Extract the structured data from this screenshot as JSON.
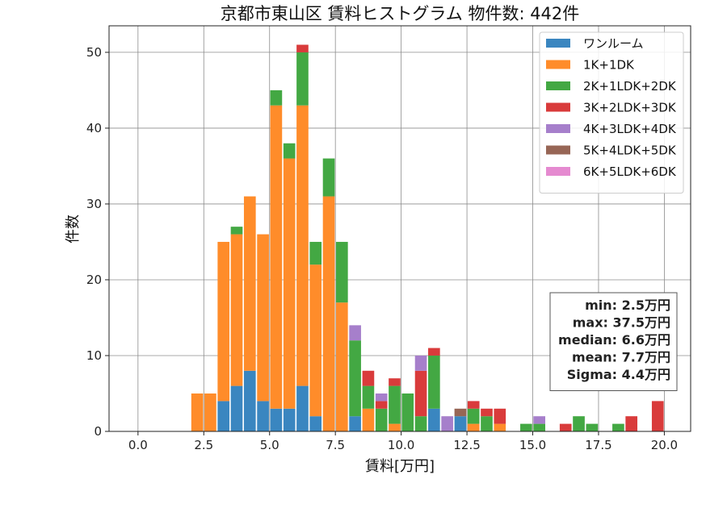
{
  "chart_data": {
    "type": "bar",
    "stacked": true,
    "title": "京都市東山区 賃料ヒストグラム  物件数: 442件",
    "xlabel": "賃料[万円]",
    "ylabel": "件数",
    "xlim": [
      -1.1,
      21.0
    ],
    "ylim": [
      0,
      53.5
    ],
    "xticks": [
      0,
      2.5,
      5,
      7.5,
      10,
      12.5,
      15,
      17.5,
      20
    ],
    "xtick_labels": [
      "0.0",
      "2.5",
      "5.0",
      "7.5",
      "10.0",
      "12.5",
      "15.0",
      "17.5",
      "20.0"
    ],
    "yticks": [
      0,
      10,
      20,
      30,
      40,
      50
    ],
    "ytick_labels": [
      "0",
      "10",
      "20",
      "30",
      "40",
      "50"
    ],
    "grid": true,
    "legend_position": "top-right",
    "bin_width": 0.5,
    "bins": [
      2.25,
      2.75,
      3.25,
      3.75,
      4.25,
      4.75,
      5.25,
      5.75,
      6.25,
      6.75,
      7.25,
      7.75,
      8.25,
      8.75,
      9.25,
      9.75,
      10.25,
      10.75,
      11.25,
      11.75,
      12.25,
      12.75,
      13.25,
      13.75,
      14.25,
      14.75,
      15.25,
      15.75,
      16.25,
      16.75,
      17.25,
      17.75,
      18.25,
      18.75,
      19.25,
      19.75
    ],
    "series": [
      {
        "name": "ワンルーム",
        "color": "#3a86c0",
        "values": [
          0,
          0,
          4,
          6,
          8,
          4,
          3,
          3,
          6,
          2,
          0,
          0,
          2,
          0,
          0,
          0,
          0,
          0,
          3,
          0,
          2,
          0,
          0,
          0,
          0,
          0,
          0,
          0,
          0,
          0,
          0,
          0,
          0,
          0,
          0,
          0
        ]
      },
      {
        "name": "1K+1DK",
        "color": "#ff8c2a",
        "values": [
          5,
          5,
          21,
          20,
          23,
          22,
          40,
          33,
          37,
          20,
          31,
          17,
          0,
          3,
          0,
          1,
          0,
          0,
          0,
          0,
          0,
          1,
          0,
          1,
          0,
          0,
          0,
          0,
          0,
          0,
          0,
          0,
          0,
          0,
          0,
          0
        ]
      },
      {
        "name": "2K+1LDK+2DK",
        "color": "#43a843",
        "values": [
          0,
          0,
          0,
          1,
          0,
          0,
          2,
          2,
          7,
          3,
          5,
          8,
          10,
          3,
          3,
          5,
          5,
          2,
          7,
          0,
          0,
          2,
          2,
          0,
          0,
          1,
          1,
          0,
          0,
          2,
          1,
          0,
          1,
          0,
          0,
          0
        ]
      },
      {
        "name": "3K+2LDK+3DK",
        "color": "#d93b3b",
        "values": [
          0,
          0,
          0,
          0,
          0,
          0,
          0,
          0,
          1,
          0,
          0,
          0,
          0,
          2,
          1,
          1,
          0,
          6,
          1,
          0,
          0,
          1,
          1,
          2,
          0,
          0,
          0,
          0,
          1,
          0,
          0,
          0,
          0,
          2,
          0,
          4
        ]
      },
      {
        "name": "4K+3LDK+4DK",
        "color": "#a67fcb",
        "values": [
          0,
          0,
          0,
          0,
          0,
          0,
          0,
          0,
          0,
          0,
          0,
          0,
          2,
          0,
          1,
          0,
          0,
          2,
          0,
          2,
          0,
          0,
          0,
          0,
          0,
          0,
          1,
          0,
          0,
          0,
          0,
          0,
          0,
          0,
          0,
          0
        ]
      },
      {
        "name": "5K+4LDK+5DK",
        "color": "#976656",
        "values": [
          0,
          0,
          0,
          0,
          0,
          0,
          0,
          0,
          0,
          0,
          0,
          0,
          0,
          0,
          0,
          0,
          0,
          0,
          0,
          0,
          1,
          0,
          0,
          0,
          0,
          0,
          0,
          0,
          0,
          0,
          0,
          0,
          0,
          0,
          0,
          0
        ]
      },
      {
        "name": "6K+5LDK+6DK",
        "color": "#e58ad0",
        "values": [
          0,
          0,
          0,
          0,
          0,
          0,
          0,
          0,
          0,
          0,
          0,
          0,
          0,
          0,
          0,
          0,
          0,
          0,
          0,
          0,
          0,
          0,
          0,
          0,
          0,
          0,
          0,
          0,
          0,
          0,
          0,
          0,
          0,
          0,
          0,
          0
        ]
      }
    ],
    "stats": [
      "min: 2.5万円",
      "max: 37.5万円",
      "median: 6.6万円",
      "mean: 7.7万円",
      "Sigma: 4.4万円"
    ]
  }
}
